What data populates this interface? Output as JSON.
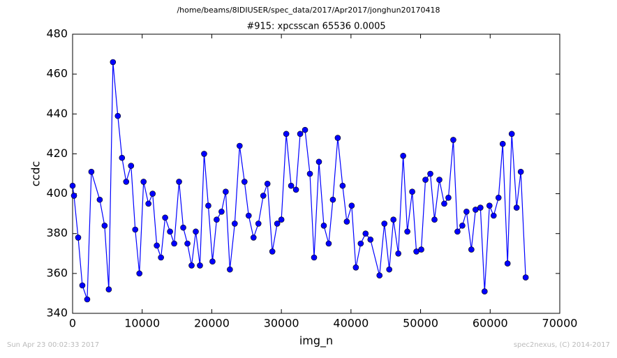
{
  "chart_data": {
    "type": "line",
    "suptitle": "/home/beams/8IDIUSER/spec_data/2017/Apr2017/jonghun20170418",
    "title": "#915: xpcsscan 65536 0.0005",
    "x_label": "img_n",
    "y_label": "ccdc",
    "footer_left": "Sun Apr 23 00:02:33 2017",
    "footer_right": "spec2nexus, (C) 2014-2017",
    "xlim": [
      0,
      70000
    ],
    "xticks": [
      0,
      10000,
      20000,
      30000,
      40000,
      50000,
      60000,
      70000
    ],
    "ylim": [
      340,
      480
    ],
    "yticks": [
      340,
      360,
      380,
      400,
      420,
      440,
      460,
      480
    ],
    "x": [
      0,
      200,
      800,
      1400,
      2100,
      2700,
      3900,
      4600,
      5200,
      5800,
      6500,
      7100,
      7700,
      8400,
      9000,
      9600,
      10200,
      10900,
      11500,
      12100,
      12700,
      13300,
      14000,
      14600,
      15300,
      15900,
      16500,
      17100,
      17700,
      18300,
      18900,
      19500,
      20100,
      20700,
      21400,
      22000,
      22600,
      23300,
      24000,
      24700,
      25300,
      26000,
      26700,
      27400,
      28000,
      28700,
      29400,
      30000,
      30700,
      31400,
      32100,
      32700,
      33400,
      34100,
      34700,
      35400,
      36100,
      36800,
      37400,
      38100,
      38800,
      39400,
      40100,
      40700,
      41400,
      42100,
      42800,
      44100,
      44800,
      45500,
      46100,
      46800,
      47500,
      48100,
      48800,
      49400,
      50100,
      50700,
      51400,
      52000,
      52700,
      53400,
      54000,
      54700,
      55300,
      56000,
      56600,
      57300,
      57900,
      58600,
      59200,
      59900,
      60500,
      61200,
      61800,
      62500,
      63100,
      63800,
      64400,
      65100
    ],
    "series": [
      {
        "name": "ccdc",
        "color": "#0000ff",
        "values": [
          404,
          399,
          378,
          354,
          347,
          411,
          397,
          384,
          352,
          466,
          439,
          418,
          406,
          414,
          382,
          360,
          406,
          395,
          400,
          374,
          368,
          388,
          381,
          375,
          406,
          383,
          375,
          364,
          381,
          364,
          420,
          394,
          366,
          387,
          391,
          401,
          362,
          385,
          424,
          406,
          389,
          378,
          385,
          399,
          405,
          371,
          385,
          387,
          430,
          404,
          402,
          430,
          432,
          410,
          368,
          416,
          384,
          375,
          397,
          428,
          404,
          386,
          394,
          363,
          375,
          380,
          377,
          359,
          385,
          362,
          387,
          370,
          419,
          381,
          401,
          371,
          372,
          407,
          410,
          387,
          407,
          395,
          398,
          427,
          381,
          384,
          391,
          372,
          392,
          393,
          351,
          394,
          389,
          398,
          425,
          365,
          430,
          393,
          411,
          358
        ]
      }
    ]
  }
}
